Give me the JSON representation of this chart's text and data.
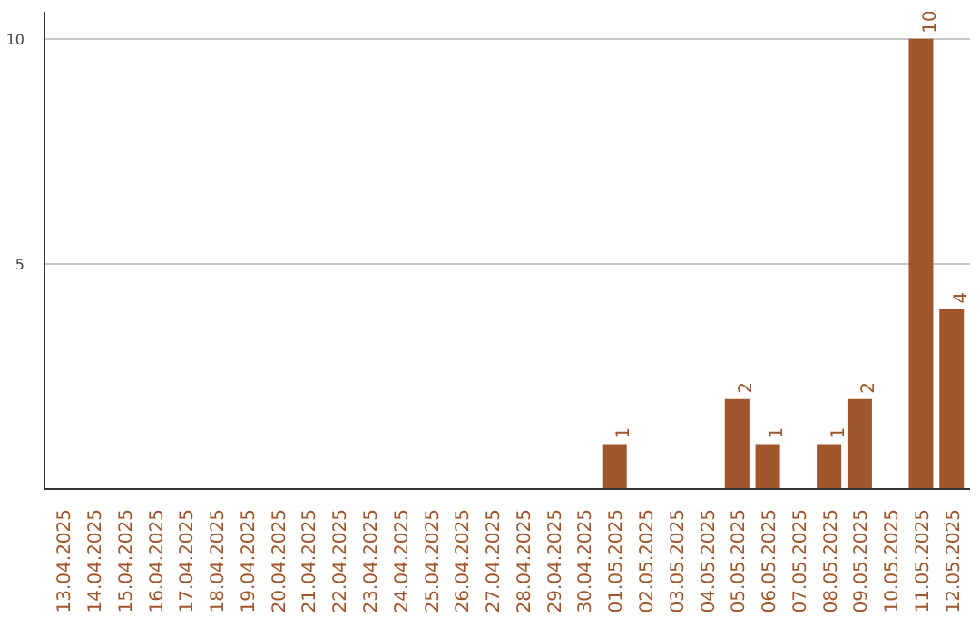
{
  "chart_data": {
    "type": "bar",
    "categories": [
      "13.04.2025",
      "14.04.2025",
      "15.04.2025",
      "16.04.2025",
      "17.04.2025",
      "18.04.2025",
      "19.04.2025",
      "20.04.2025",
      "21.04.2025",
      "22.04.2025",
      "23.04.2025",
      "24.04.2025",
      "25.04.2025",
      "26.04.2025",
      "27.04.2025",
      "28.04.2025",
      "29.04.2025",
      "30.04.2025",
      "01.05.2025",
      "02.05.2025",
      "03.05.2025",
      "04.05.2025",
      "05.05.2025",
      "06.05.2025",
      "07.05.2025",
      "08.05.2025",
      "09.05.2025",
      "10.05.2025",
      "11.05.2025",
      "12.05.2025"
    ],
    "values": [
      0,
      0,
      0,
      0,
      0,
      0,
      0,
      0,
      0,
      0,
      0,
      0,
      0,
      0,
      0,
      0,
      0,
      0,
      1,
      0,
      0,
      0,
      2,
      1,
      0,
      1,
      2,
      0,
      10,
      4
    ],
    "value_labels": [
      null,
      null,
      null,
      null,
      null,
      null,
      null,
      null,
      null,
      null,
      null,
      null,
      null,
      null,
      null,
      null,
      null,
      null,
      "1",
      null,
      null,
      null,
      "2",
      "1",
      null,
      "1",
      "2",
      null,
      "10",
      "4"
    ],
    "color": "#a0562a",
    "ylim": [
      0,
      10.6
    ],
    "yticks": [
      5,
      10
    ],
    "grid": "y"
  }
}
